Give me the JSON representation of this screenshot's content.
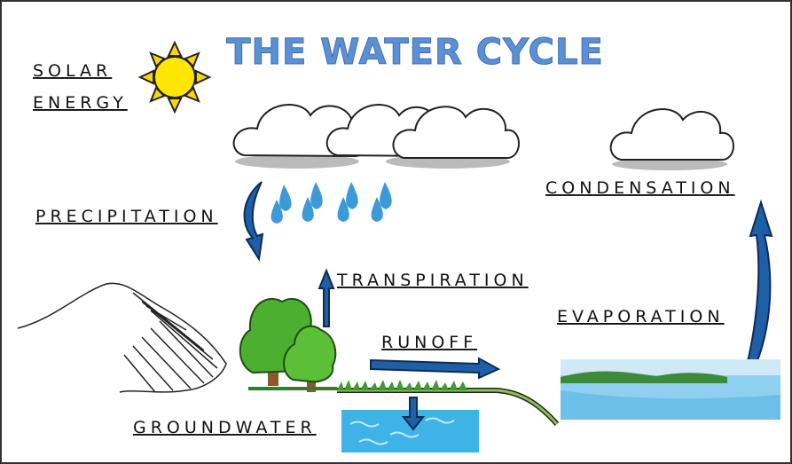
{
  "title": "THE WATER CYCLE",
  "labels": {
    "solar_energy": [
      "SOLAR",
      "ENERGY"
    ],
    "precipitation": "PRECIPITATION",
    "condensation": "CONDENSATION",
    "transpiration": "TRANSPIRATION",
    "evaporation": "EVAPORATION",
    "runoff": "RUNOFF",
    "groundwater": "GROUNDWATER"
  }
}
